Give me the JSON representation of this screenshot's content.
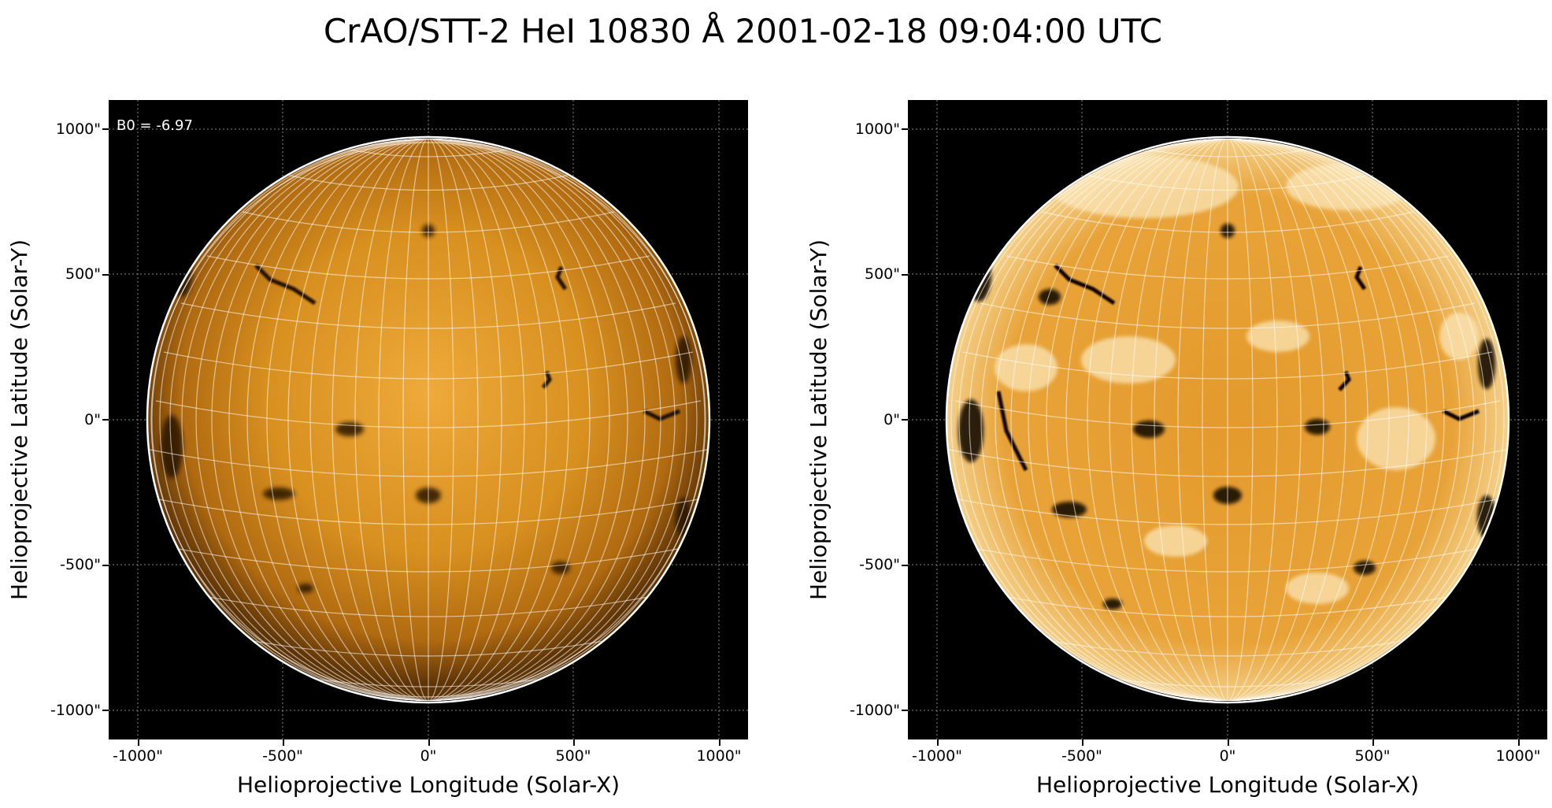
{
  "title": "CrAO/STT-2 HeI 10830 Å 2001-02-18 09:04:00 UTC",
  "panels": [
    {
      "annotation": "B0 = -6.97",
      "xlabel": "Helioprojective Longitude (Solar-X)",
      "ylabel": "Helioprojective Latitude (Solar-Y)",
      "xticks": [
        "-1000\"",
        "-500\"",
        "0\"",
        "500\"",
        "1000\""
      ],
      "yticks": [
        "1000\"",
        "500\"",
        "0\"",
        "-500\"",
        "-1000\""
      ],
      "style": "normal"
    },
    {
      "annotation": "",
      "xlabel": "Helioprojective Longitude (Solar-X)",
      "ylabel": "Helioprojective Latitude (Solar-Y)",
      "xticks": [
        "-1000\"",
        "-500\"",
        "0\"",
        "500\"",
        "1000\""
      ],
      "yticks": [
        "1000\"",
        "500\"",
        "0\"",
        "-500\"",
        "-1000\""
      ],
      "style": "enhanced"
    }
  ],
  "colors": {
    "disk_center": "#f0a830",
    "disk_mid": "#d4881a",
    "disk_limb": "#6a3d08",
    "background": "#000000",
    "grid": "#ffffff",
    "dark_features": "#1a0d00"
  }
}
